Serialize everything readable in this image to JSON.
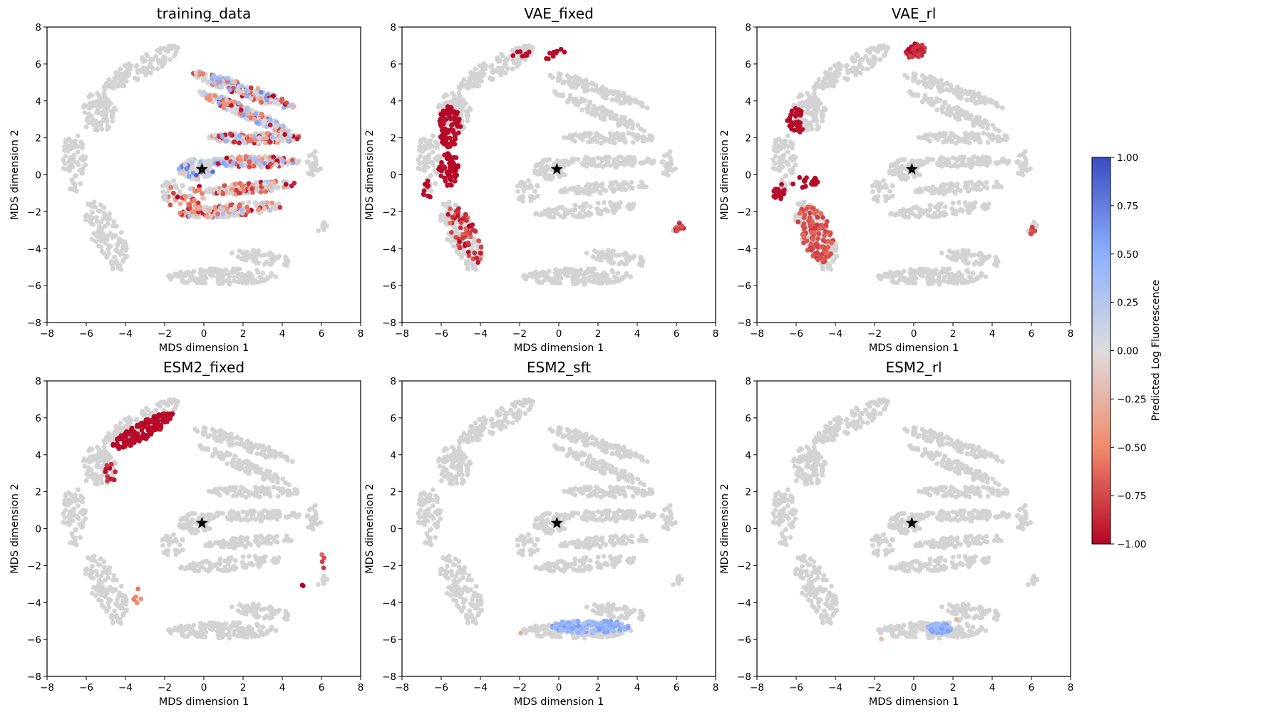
{
  "chart_data": {
    "type": "scatter",
    "panels": [
      {
        "title": "training_data",
        "xlabel": "MDS dimension 1",
        "ylabel": "MDS dimension 2",
        "xlim": [
          -8,
          8
        ],
        "ylim": [
          -8,
          8
        ],
        "highlight": "training_data"
      },
      {
        "title": "VAE_fixed",
        "xlabel": "MDS dimension 1",
        "ylabel": "MDS dimension 2",
        "xlim": [
          -8,
          8
        ],
        "ylim": [
          -8,
          8
        ],
        "highlight": "VAE_fixed"
      },
      {
        "title": "VAE_rl",
        "xlabel": "MDS dimension 1",
        "ylabel": "MDS dimension 2",
        "xlim": [
          -8,
          8
        ],
        "ylim": [
          -8,
          8
        ],
        "highlight": "VAE_rl"
      },
      {
        "title": "ESM2_fixed",
        "xlabel": "MDS dimension 1",
        "ylabel": "MDS dimension 2",
        "xlim": [
          -8,
          8
        ],
        "ylim": [
          -8,
          8
        ],
        "highlight": "ESM2_fixed"
      },
      {
        "title": "ESM2_sft",
        "xlabel": "MDS dimension 1",
        "ylabel": "MDS dimension 2",
        "xlim": [
          -8,
          8
        ],
        "ylim": [
          -8,
          8
        ],
        "highlight": "ESM2_sft"
      },
      {
        "title": "ESM2_rl",
        "xlabel": "MDS dimension 1",
        "ylabel": "MDS dimension 2",
        "xlim": [
          -8,
          8
        ],
        "ylim": [
          -8,
          8
        ],
        "highlight": "ESM2_rl"
      }
    ],
    "xticks": [
      -8,
      -6,
      -4,
      -2,
      0,
      2,
      4,
      6,
      8
    ],
    "yticks": [
      -8,
      -6,
      -4,
      -2,
      0,
      2,
      4,
      6,
      8
    ],
    "reference_point": {
      "x": -0.1,
      "y": 0.3,
      "marker": "star",
      "color": "#000000"
    },
    "background_color": "#d3d3d3",
    "background_clusters": [
      {
        "cx": -3.2,
        "cy": 5.8,
        "rx": 2.2,
        "ry": 0.55,
        "rot": 30,
        "n": 130
      },
      {
        "cx": -5.4,
        "cy": 3.4,
        "rx": 0.9,
        "ry": 1.1,
        "rot": 0,
        "n": 90
      },
      {
        "cx": -6.6,
        "cy": 0.6,
        "rx": 0.6,
        "ry": 1.6,
        "rot": 0,
        "n": 60
      },
      {
        "cx": -5.0,
        "cy": -3.2,
        "rx": 0.8,
        "ry": 1.9,
        "rot": 25,
        "n": 110
      },
      {
        "cx": 0.9,
        "cy": -5.5,
        "rx": 2.8,
        "ry": 0.45,
        "rot": 0,
        "n": 150
      },
      {
        "cx": 3.0,
        "cy": -4.5,
        "rx": 1.6,
        "ry": 0.35,
        "rot": -10,
        "n": 60
      },
      {
        "cx": 2.0,
        "cy": 4.6,
        "rx": 2.8,
        "ry": 0.35,
        "rot": -20,
        "n": 110
      },
      {
        "cx": 2.1,
        "cy": 3.4,
        "rx": 2.6,
        "ry": 0.3,
        "rot": -25,
        "n": 100
      },
      {
        "cx": 2.6,
        "cy": 2.0,
        "rx": 2.4,
        "ry": 0.3,
        "rot": 0,
        "n": 90
      },
      {
        "cx": 2.5,
        "cy": 0.7,
        "rx": 2.4,
        "ry": 0.3,
        "rot": 0,
        "n": 90
      },
      {
        "cx": 2.4,
        "cy": -0.7,
        "rx": 2.4,
        "ry": 0.3,
        "rot": 5,
        "n": 80
      },
      {
        "cx": 1.4,
        "cy": -1.9,
        "rx": 2.6,
        "ry": 0.35,
        "rot": 5,
        "n": 90
      },
      {
        "cx": -0.4,
        "cy": 0.3,
        "rx": 0.9,
        "ry": 0.55,
        "rot": 0,
        "n": 60
      },
      {
        "cx": -1.6,
        "cy": -0.9,
        "rx": 0.6,
        "ry": 0.6,
        "rot": 0,
        "n": 30
      },
      {
        "cx": 5.6,
        "cy": 0.6,
        "rx": 0.4,
        "ry": 0.7,
        "rot": 0,
        "n": 25
      },
      {
        "cx": 6.0,
        "cy": -2.8,
        "rx": 0.3,
        "ry": 0.3,
        "rot": 0,
        "n": 10
      },
      {
        "cx": -4.5,
        "cy": -5.0,
        "rx": 0.3,
        "ry": 0.3,
        "rot": 0,
        "n": 8
      },
      {
        "cx": -7.0,
        "cy": 1.5,
        "rx": 0.3,
        "ry": 0.5,
        "rot": 0,
        "n": 10
      }
    ],
    "highlight_clusters": {
      "training_data": [
        {
          "cx": 2.0,
          "cy": 4.6,
          "rx": 2.8,
          "ry": 0.35,
          "rot": -20,
          "n": 110,
          "v": [
            -1,
            0.7
          ]
        },
        {
          "cx": 2.1,
          "cy": 3.4,
          "rx": 2.6,
          "ry": 0.3,
          "rot": -25,
          "n": 100,
          "v": [
            -1,
            0.6
          ]
        },
        {
          "cx": 2.6,
          "cy": 2.0,
          "rx": 2.4,
          "ry": 0.3,
          "rot": 0,
          "n": 90,
          "v": [
            -1,
            0.5
          ]
        },
        {
          "cx": 2.5,
          "cy": 0.7,
          "rx": 2.4,
          "ry": 0.3,
          "rot": 0,
          "n": 90,
          "v": [
            -1,
            0.6
          ]
        },
        {
          "cx": 2.4,
          "cy": -0.7,
          "rx": 2.4,
          "ry": 0.3,
          "rot": 5,
          "n": 80,
          "v": [
            -1,
            0.4
          ]
        },
        {
          "cx": 1.4,
          "cy": -1.9,
          "rx": 2.6,
          "ry": 0.35,
          "rot": 5,
          "n": 90,
          "v": [
            -1,
            0.4
          ]
        },
        {
          "cx": -0.4,
          "cy": 0.3,
          "rx": 0.9,
          "ry": 0.55,
          "rot": 0,
          "n": 40,
          "v": [
            -0.2,
            0.9
          ]
        },
        {
          "cx": -1.0,
          "cy": -1.2,
          "rx": 1.1,
          "ry": 0.9,
          "rot": 0,
          "n": 40,
          "v": [
            -1,
            0.2
          ]
        }
      ],
      "VAE_fixed": [
        {
          "cx": -5.6,
          "cy": 2.6,
          "rx": 0.6,
          "ry": 1.1,
          "rot": 0,
          "n": 90,
          "v": [
            -1,
            -0.95
          ]
        },
        {
          "cx": -5.6,
          "cy": 0.3,
          "rx": 0.55,
          "ry": 0.9,
          "rot": 0,
          "n": 60,
          "v": [
            -1,
            -0.95
          ]
        },
        {
          "cx": -6.7,
          "cy": -0.8,
          "rx": 0.25,
          "ry": 0.5,
          "rot": 0,
          "n": 10,
          "v": [
            -1,
            -0.95
          ]
        },
        {
          "cx": -4.8,
          "cy": -3.2,
          "rx": 0.6,
          "ry": 1.7,
          "rot": 25,
          "n": 60,
          "v": [
            -1,
            -0.6
          ]
        },
        {
          "cx": -2.0,
          "cy": 6.6,
          "rx": 0.5,
          "ry": 0.2,
          "rot": 0,
          "n": 8,
          "v": [
            -1,
            -0.95
          ]
        },
        {
          "cx": -0.2,
          "cy": 6.6,
          "rx": 0.6,
          "ry": 0.3,
          "rot": 20,
          "n": 10,
          "v": [
            -1,
            -0.95
          ]
        },
        {
          "cx": 6.2,
          "cy": -2.9,
          "rx": 0.3,
          "ry": 0.3,
          "rot": 0,
          "n": 8,
          "v": [
            -1,
            -0.7
          ]
        }
      ],
      "VAE_rl": [
        {
          "cx": 0.1,
          "cy": 6.7,
          "rx": 0.5,
          "ry": 0.4,
          "rot": 25,
          "n": 60,
          "v": [
            -1,
            -0.75
          ]
        },
        {
          "cx": -6.0,
          "cy": 2.9,
          "rx": 0.45,
          "ry": 0.7,
          "rot": 0,
          "n": 30,
          "v": [
            -1,
            -0.95
          ]
        },
        {
          "cx": -6.9,
          "cy": -0.9,
          "rx": 0.3,
          "ry": 0.5,
          "rot": 0,
          "n": 20,
          "v": [
            -1,
            -0.95
          ]
        },
        {
          "cx": -5.5,
          "cy": -0.4,
          "rx": 0.7,
          "ry": 0.3,
          "rot": 0,
          "n": 20,
          "v": [
            -1,
            -0.95
          ]
        },
        {
          "cx": -5.0,
          "cy": -3.2,
          "rx": 0.8,
          "ry": 1.6,
          "rot": 20,
          "n": 110,
          "v": [
            -0.8,
            -0.6
          ]
        },
        {
          "cx": 6.0,
          "cy": -3.0,
          "rx": 0.3,
          "ry": 0.25,
          "rot": 0,
          "n": 8,
          "v": [
            -0.8,
            -0.6
          ]
        }
      ],
      "ESM2_fixed": [
        {
          "cx": -3.1,
          "cy": 5.3,
          "rx": 1.8,
          "ry": 0.45,
          "rot": 30,
          "n": 150,
          "v": [
            -1,
            -0.95
          ]
        },
        {
          "cx": -4.8,
          "cy": 3.0,
          "rx": 0.3,
          "ry": 0.6,
          "rot": 0,
          "n": 12,
          "v": [
            -1,
            -0.8
          ]
        },
        {
          "cx": -3.4,
          "cy": -3.7,
          "rx": 0.2,
          "ry": 0.5,
          "rot": 0,
          "n": 6,
          "v": [
            -0.6,
            -0.4
          ]
        },
        {
          "cx": 6.0,
          "cy": -1.8,
          "rx": 0.15,
          "ry": 0.6,
          "rot": 0,
          "n": 4,
          "v": [
            -0.8,
            -0.6
          ]
        },
        {
          "cx": 5.0,
          "cy": -3.1,
          "rx": 0.1,
          "ry": 0.2,
          "rot": 0,
          "n": 2,
          "v": [
            -1,
            -0.95
          ]
        }
      ],
      "ESM2_sft": [
        {
          "cx": 1.6,
          "cy": -5.3,
          "rx": 2.0,
          "ry": 0.35,
          "rot": 0,
          "n": 140,
          "v": [
            0.3,
            0.6
          ]
        },
        {
          "cx": -2.0,
          "cy": -5.6,
          "rx": 0.1,
          "ry": 0.1,
          "rot": 0,
          "n": 1,
          "v": [
            -0.3,
            -0.3
          ]
        }
      ],
      "ESM2_rl": [
        {
          "cx": 1.3,
          "cy": -5.4,
          "rx": 0.6,
          "ry": 0.25,
          "rot": 0,
          "n": 90,
          "v": [
            0.35,
            0.6
          ]
        },
        {
          "cx": -1.6,
          "cy": -5.9,
          "rx": 0.1,
          "ry": 0.1,
          "rot": 0,
          "n": 1,
          "v": [
            -0.2,
            -0.2
          ]
        },
        {
          "cx": 2.3,
          "cy": -4.9,
          "rx": 0.2,
          "ry": 0.2,
          "rot": 0,
          "n": 3,
          "v": [
            -0.3,
            0.2
          ]
        }
      ]
    },
    "colorbar": {
      "label": "Predicted Log Fluorescence",
      "range": [
        -1.0,
        1.0
      ],
      "ticks": [
        "1.00",
        "0.75",
        "0.50",
        "0.25",
        "0.00",
        "−0.25",
        "−0.50",
        "−0.75",
        "−1.00"
      ],
      "colormap": "coolwarm_r"
    }
  }
}
